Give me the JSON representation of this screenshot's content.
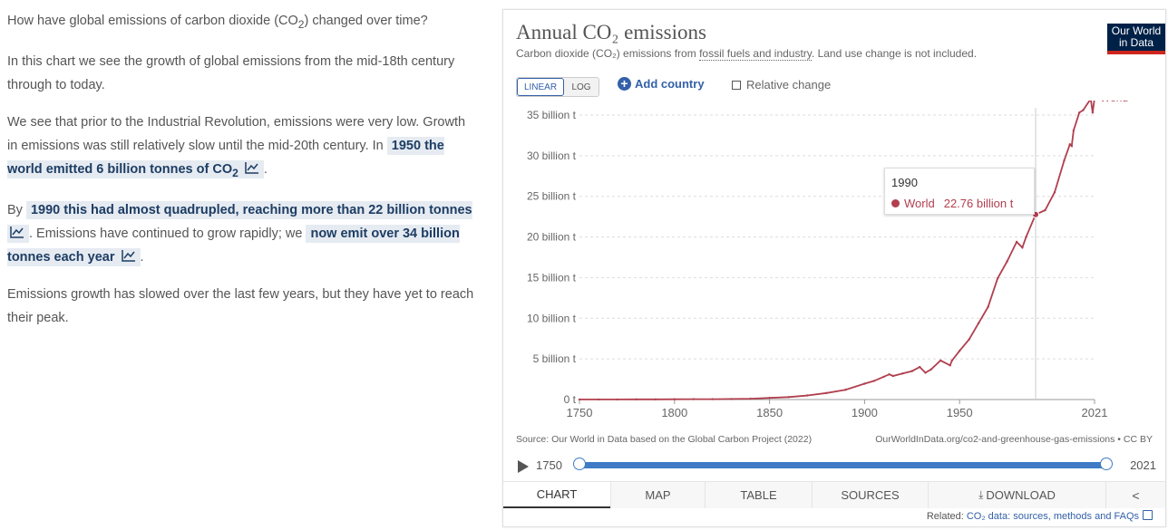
{
  "article": {
    "question_pre": "How have global emissions of carbon dioxide (CO",
    "question_sub": "2",
    "question_post": ") changed over time?",
    "p2": "In this chart we see the growth of global emissions from the mid-18th century through to today.",
    "p3_text": "We see that prior to the Industrial Revolution, emissions were very low. Growth in emissions was still relatively slow until the mid-20th century. In",
    "p3_link_pre": "1950 the world emitted 6 billion tonnes of CO",
    "p3_link_sub": "2",
    "p4_pre": "By",
    "p4_link1": "1990 this had almost quadrupled, reaching more than 22 billion tonnes",
    "p4_mid": ". Emissions have continued to grow rapidly; we",
    "p4_link2": "now emit over 34 billion tonnes each year",
    "p5": "Emissions growth has slowed over the last few years, but they have yet to reach their peak."
  },
  "card": {
    "title": "Annual CO₂ emissions",
    "subtitle_pre": "Carbon dioxide (CO₂) emissions from ",
    "subtitle_link": "fossil fuels and industry",
    "subtitle_post": ". Land use change is not included.",
    "logo_line1": "Our World",
    "logo_line2": "in Data",
    "scale_linear": "LINEAR",
    "scale_log": "LOG",
    "add_country": "Add country",
    "relative_change": "Relative change",
    "tooltip": {
      "year": "1990",
      "entity": "World",
      "value": "22.76 billion t"
    },
    "source": "Source: Our World in Data based on the Global Carbon Project (2022)",
    "url": "OurWorldInData.org/co2-and-greenhouse-gas-emissions • CC BY",
    "timeline": {
      "start": "1750",
      "end": "2021"
    },
    "tabs": [
      "CHART",
      "MAP",
      "TABLE",
      "SOURCES",
      "DOWNLOAD"
    ],
    "related_pre": "Related: ",
    "related_link": "CO₂ data: sources, methods and FAQs"
  },
  "colors": {
    "series": "#b13f4e",
    "accent": "#3360a9",
    "logo_bg": "#002147",
    "logo_bar": "#ce261e"
  },
  "chart_data": {
    "type": "line",
    "title": "Annual CO₂ emissions",
    "xlabel": "",
    "ylabel": "",
    "xlim": [
      1750,
      2021
    ],
    "ylim": [
      0,
      35
    ],
    "yticks": [
      "0 t",
      "5 billion t",
      "10 billion t",
      "15 billion t",
      "20 billion t",
      "25 billion t",
      "30 billion t",
      "35 billion t"
    ],
    "xticks": [
      "1750",
      "1800",
      "1850",
      "1900",
      "1950",
      "2021"
    ],
    "grid": true,
    "legend": "end-of-line",
    "highlight": {
      "x": 1990,
      "y": 22.76
    },
    "series": [
      {
        "name": "World",
        "x": [
          1750,
          1760,
          1770,
          1780,
          1790,
          1800,
          1810,
          1820,
          1830,
          1840,
          1850,
          1860,
          1870,
          1880,
          1890,
          1900,
          1905,
          1910,
          1913,
          1915,
          1920,
          1925,
          1929,
          1932,
          1935,
          1940,
          1945,
          1946,
          1950,
          1955,
          1960,
          1965,
          1970,
          1975,
          1980,
          1983,
          1985,
          1990,
          1995,
          2000,
          2005,
          2008,
          2009,
          2010,
          2013,
          2015,
          2019,
          2020,
          2021
        ],
        "values": [
          0.01,
          0.01,
          0.01,
          0.02,
          0.02,
          0.03,
          0.04,
          0.05,
          0.07,
          0.1,
          0.2,
          0.3,
          0.5,
          0.8,
          1.2,
          1.95,
          2.3,
          2.8,
          3.1,
          2.9,
          3.2,
          3.5,
          4.0,
          3.3,
          3.7,
          4.8,
          4.2,
          4.8,
          6.0,
          7.4,
          9.4,
          11.4,
          14.9,
          17.0,
          19.4,
          18.7,
          20.0,
          22.76,
          23.3,
          25.5,
          29.4,
          31.4,
          31.2,
          33.1,
          35.3,
          35.6,
          37.0,
          35.3,
          37.1
        ]
      }
    ]
  }
}
